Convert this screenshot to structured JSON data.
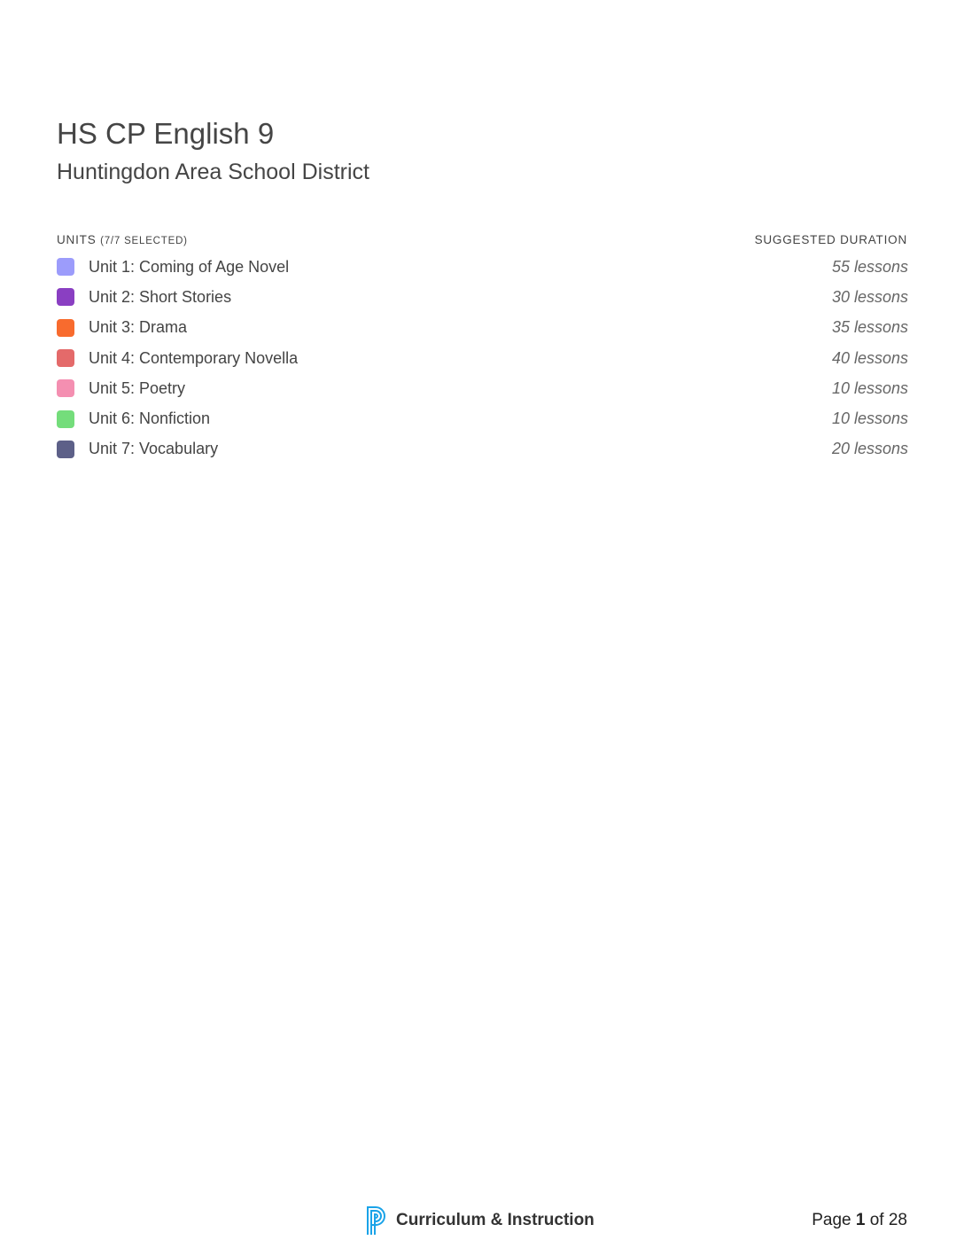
{
  "header": {
    "title": "HS CP English 9",
    "subtitle": "Huntingdon Area School District"
  },
  "units_header": {
    "label": "UNITS",
    "selected": "(7/7 SELECTED)",
    "duration_label": "SUGGESTED DURATION"
  },
  "units": [
    {
      "name": "Unit 1: Coming of Age Novel",
      "duration": "55 lessons",
      "color": "#9c9cfb"
    },
    {
      "name": "Unit 2: Short Stories",
      "duration": "30 lessons",
      "color": "#8a3fc2"
    },
    {
      "name": "Unit 3: Drama",
      "duration": "35 lessons",
      "color": "#f86b2e"
    },
    {
      "name": "Unit 4: Contemporary Novella",
      "duration": "40 lessons",
      "color": "#e46a6a"
    },
    {
      "name": "Unit 5: Poetry",
      "duration": "10 lessons",
      "color": "#f48fb1"
    },
    {
      "name": "Unit 6: Nonfiction",
      "duration": "10 lessons",
      "color": "#74dd7b"
    },
    {
      "name": "Unit 7: Vocabulary",
      "duration": "20 lessons",
      "color": "#5d6088"
    }
  ],
  "footer": {
    "brand": "Curriculum & Instruction",
    "logo_color": "#1aa3e8",
    "page_prefix": "Page",
    "page_current": "1",
    "page_sep": "of",
    "page_total": "28"
  }
}
